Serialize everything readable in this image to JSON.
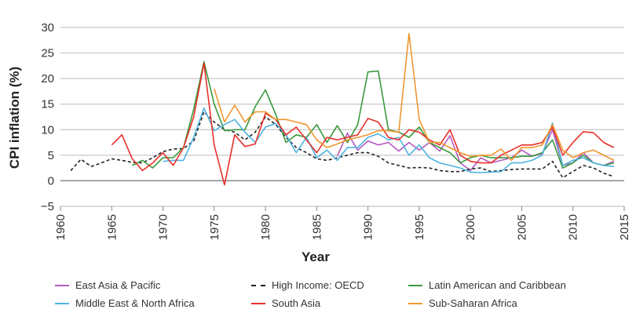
{
  "chart_data": {
    "type": "line",
    "title": "",
    "xlabel": "Year",
    "ylabel": "CPI inflation (%)",
    "xlim": [
      1960,
      2015
    ],
    "ylim": [
      -5,
      30
    ],
    "xticks": [
      "1960",
      "1965",
      "1970",
      "1975",
      "1980",
      "1985",
      "1990",
      "1995",
      "2000",
      "2005",
      "2010",
      "2015"
    ],
    "yticks": [
      "−5",
      "0",
      "5",
      "10",
      "15",
      "20",
      "25",
      "30"
    ],
    "grid": "horizontal",
    "legend_position": "bottom",
    "series": [
      {
        "name": "East Asia & Pacific",
        "color": "#b45bc2",
        "dash": false,
        "start": 1987,
        "values": [
          4.8,
          9.3,
          6,
          7.8,
          7,
          7.5,
          5.8,
          7.5,
          6,
          7.5,
          5.8,
          8.8,
          3.5,
          2,
          4.5,
          3.5,
          4,
          4.5,
          6,
          4.8,
          5.3,
          10,
          3,
          3.5,
          5.5,
          3.5,
          3,
          3.8
        ]
      },
      {
        "name": "High Income: OECD",
        "color": "#222222",
        "dash": true,
        "start": 1961,
        "values": [
          2,
          4.2,
          2.8,
          3.5,
          4.3,
          4,
          3.6,
          3.5,
          4.5,
          5.7,
          6.2,
          6.3,
          7.8,
          13.5,
          11.5,
          10,
          9.5,
          8,
          9.5,
          12.5,
          11,
          8.5,
          6.5,
          5.5,
          4.3,
          4,
          4.5,
          5,
          5.5,
          5.5,
          4.8,
          3.5,
          3,
          2.5,
          2.6,
          2.5,
          2,
          1.8,
          1.8,
          2.3,
          2.5,
          1.8,
          2,
          2.2,
          2.3,
          2.3,
          2.3,
          3.8,
          0.6,
          1.8,
          3,
          2.5,
          1.5,
          0.8
        ]
      },
      {
        "name": "Latin American and Caribbean",
        "color": "#3a9a3e",
        "dash": false,
        "start": 1967,
        "values": [
          3,
          4,
          2.5,
          4.5,
          4.5,
          6.5,
          14,
          23.3,
          15,
          9.8,
          10,
          10,
          14.5,
          17.8,
          13,
          7.5,
          9,
          8.5,
          11,
          7.5,
          10.8,
          7.5,
          11,
          21.3,
          21.5,
          10,
          9.5,
          8.5,
          10.5,
          7.5,
          6.5,
          5.5,
          3.5,
          4.5,
          5,
          4.5,
          4.5,
          4.5,
          4.8,
          4.8,
          5.5,
          8,
          2.5,
          3.5,
          5,
          3.5,
          3,
          3.5
        ]
      },
      {
        "name": "Middle East & North Africa",
        "color": "#4fb3e0",
        "dash": false,
        "start": 1970,
        "values": [
          3.8,
          4,
          4,
          8.5,
          14.2,
          9.8,
          11,
          12,
          9.5,
          7.5,
          10.5,
          11.2,
          9,
          5.5,
          8.5,
          4.5,
          6,
          4,
          6.5,
          6.5,
          8.5,
          9.2,
          8,
          8.5,
          5,
          7,
          4.5,
          3.5,
          3,
          2.5,
          1.7,
          1.6,
          1.7,
          1.8,
          3.5,
          3.5,
          4,
          5,
          11.3,
          3,
          4,
          4.5,
          3.5,
          3,
          2.8
        ]
      },
      {
        "name": "South Asia",
        "color": "#e8302a",
        "dash": false,
        "start": 1965,
        "values": [
          7,
          9,
          4.3,
          2,
          3.5,
          5.5,
          3,
          6.5,
          12.5,
          23,
          7,
          -0.8,
          9,
          6.7,
          7.2,
          13.2,
          12,
          9,
          10.5,
          8,
          5.5,
          8.5,
          8,
          8.5,
          9,
          12.2,
          11.5,
          8.5,
          8,
          10,
          9.5,
          8,
          7,
          10,
          5,
          3.8,
          3.5,
          3.5,
          5,
          6,
          7,
          7,
          7.5,
          10.5,
          5,
          7.5,
          9.6,
          9.4,
          7.5,
          6.5
        ]
      },
      {
        "name": "Sub-Saharan Africa",
        "color": "#f0962f",
        "dash": false,
        "start": 1975,
        "values": [
          18,
          11.5,
          14.8,
          11.5,
          13.5,
          13.5,
          12,
          12,
          11.5,
          11,
          8,
          6.5,
          7.2,
          8,
          8.5,
          9,
          9.8,
          9.8,
          9.5,
          28.8,
          12,
          7.5,
          7.5,
          6.5,
          5.5,
          4.8,
          5,
          5,
          6.2,
          4,
          6.5,
          6.5,
          7,
          11,
          6,
          4.5,
          5.5,
          6,
          5,
          4
        ]
      }
    ]
  }
}
